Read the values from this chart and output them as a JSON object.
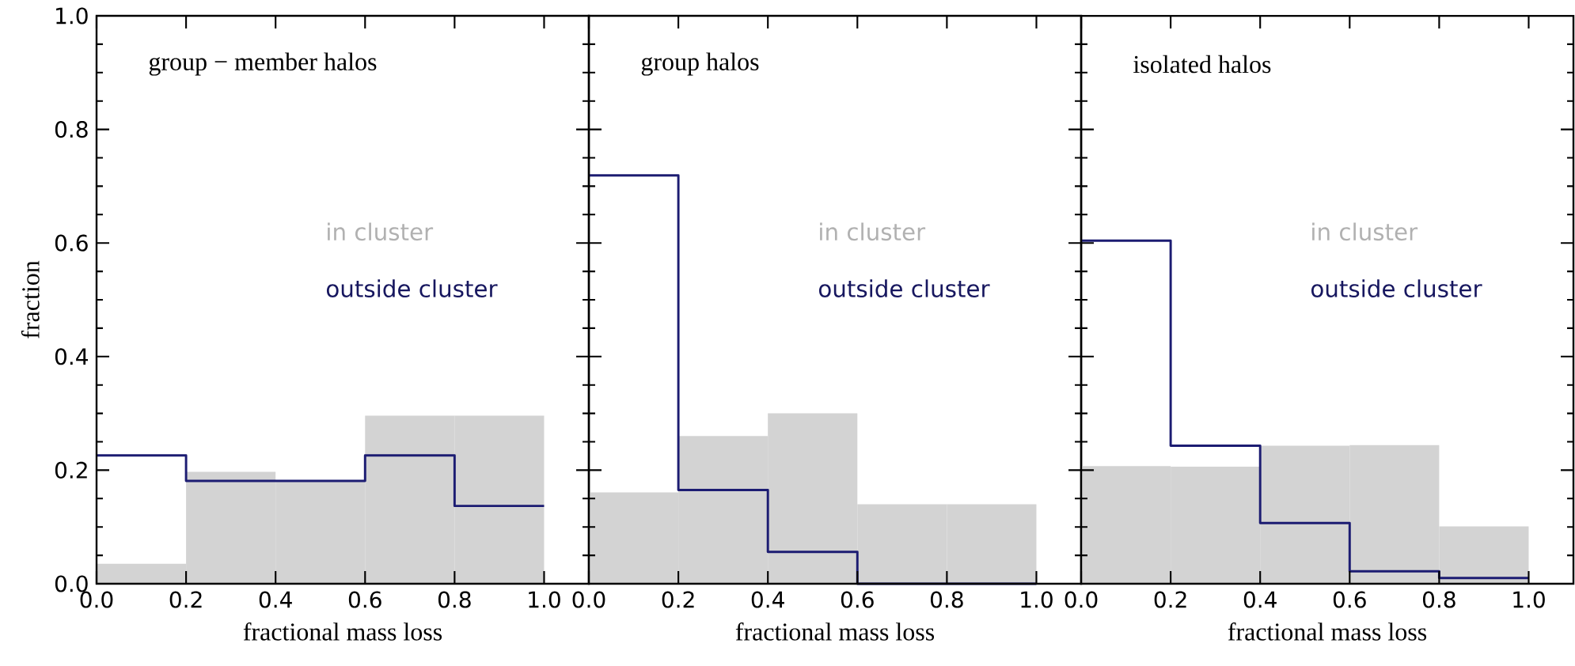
{
  "chart_data": [
    {
      "type": "histogram",
      "title": "group − member halos",
      "xlabel": "fractional mass loss",
      "ylabel": "fraction",
      "bins": [
        0,
        0.2,
        0.4,
        0.6,
        0.8,
        1.0
      ],
      "xlim": [
        0,
        1.1
      ],
      "ylim": [
        0,
        1.0
      ],
      "xticks": [
        {
          "value": 0,
          "label": "0.0"
        },
        {
          "value": 0.2,
          "label": "0.2"
        },
        {
          "value": 0.4,
          "label": "0.4"
        },
        {
          "value": 0.6,
          "label": "0.6"
        },
        {
          "value": 0.8,
          "label": "0.8"
        },
        {
          "value": 1.0,
          "label": "1.0"
        }
      ],
      "yticks": [
        {
          "value": 0,
          "label": "0.0"
        },
        {
          "value": 0.2,
          "label": "0.2"
        },
        {
          "value": 0.4,
          "label": "0.4"
        },
        {
          "value": 0.6,
          "label": "0.6"
        },
        {
          "value": 0.8,
          "label": "0.8"
        },
        {
          "value": 1.0,
          "label": "1.0"
        }
      ],
      "legend": "right",
      "series": [
        {
          "name": "in cluster",
          "type": "histogram",
          "color": "#d3d3d3",
          "values": [
            0.035,
            0.197,
            0.18,
            0.296,
            0.296
          ]
        },
        {
          "name": "outside cluster",
          "type": "step",
          "color": "#1c1c72",
          "x": [
            0,
            0.2,
            0.4,
            0.6,
            0.8,
            1.0
          ],
          "values": [
            0.226,
            0.181,
            0.181,
            0.226,
            0.137,
            0.137
          ]
        }
      ]
    },
    {
      "type": "histogram",
      "title": "group halos",
      "xlabel": "fractional mass loss",
      "bins": [
        0,
        0.2,
        0.4,
        0.6,
        0.8,
        1.0
      ],
      "xlim": [
        0,
        1.1
      ],
      "ylim": [
        0,
        1.0
      ],
      "tick_labels": "x",
      "xticks": [
        {
          "value": 0,
          "label": "0.0"
        },
        {
          "value": 0.2,
          "label": "0.2"
        },
        {
          "value": 0.4,
          "label": "0.4"
        },
        {
          "value": 0.6,
          "label": "0.6"
        },
        {
          "value": 0.8,
          "label": "0.8"
        },
        {
          "value": 1.0,
          "label": "1.0"
        }
      ],
      "yticks": [
        {
          "value": 0,
          "label": null
        },
        {
          "value": 0.2,
          "label": null
        },
        {
          "value": 0.4,
          "label": null
        },
        {
          "value": 0.6,
          "label": null
        },
        {
          "value": 0.8,
          "label": null
        },
        {
          "value": 1.0,
          "label": null
        }
      ],
      "legend": "right",
      "series": [
        {
          "name": "in cluster",
          "type": "histogram",
          "color": "#d3d3d3",
          "values": [
            0.161,
            0.26,
            0.3,
            0.14,
            0.14
          ]
        },
        {
          "name": "outside cluster",
          "type": "step",
          "color": "#1c1c72",
          "x": [
            0,
            0.2,
            0.4,
            0.6,
            0.8,
            1.0
          ],
          "values": [
            0.719,
            0.165,
            0.056,
            0,
            0,
            0
          ]
        }
      ]
    },
    {
      "type": "histogram",
      "title": "isolated halos",
      "xlabel": "fractional mass loss",
      "bins": [
        0,
        0.2,
        0.4,
        0.6,
        0.8,
        1.0
      ],
      "xlim": [
        0,
        1.1
      ],
      "ylim": [
        0,
        1.0
      ],
      "tick_labels": "x",
      "xticks": [
        {
          "value": 0,
          "label": "0.0"
        },
        {
          "value": 0.2,
          "label": "0.2"
        },
        {
          "value": 0.4,
          "label": "0.4"
        },
        {
          "value": 0.6,
          "label": "0.6"
        },
        {
          "value": 0.8,
          "label": "0.8"
        },
        {
          "value": 1.0,
          "label": "1.0"
        }
      ],
      "yticks": [
        {
          "value": 0,
          "label": null
        },
        {
          "value": 0.2,
          "label": null
        },
        {
          "value": 0.4,
          "label": null
        },
        {
          "value": 0.6,
          "label": null
        },
        {
          "value": 0.8,
          "label": null
        },
        {
          "value": 1.0,
          "label": null
        }
      ],
      "legend": "right",
      "series": [
        {
          "name": "in cluster",
          "type": "histogram",
          "color": "#d3d3d3",
          "values": [
            0.207,
            0.206,
            0.243,
            0.244,
            0.101
          ]
        },
        {
          "name": "outside cluster",
          "type": "step",
          "color": "#1c1c72",
          "x": [
            0,
            0.2,
            0.4,
            0.6,
            0.8,
            1.0
          ],
          "values": [
            0.604,
            0.243,
            0.107,
            0.022,
            0.01,
            0.01
          ]
        }
      ]
    }
  ]
}
